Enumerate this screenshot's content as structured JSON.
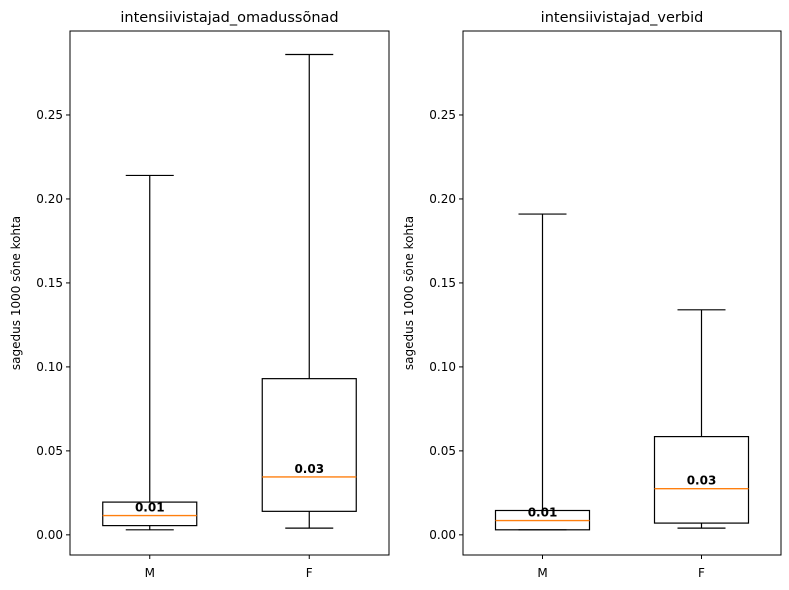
{
  "chart_data": [
    {
      "type": "box",
      "title": "intensiivistajad_omadussõnad",
      "ylabel": "sagedus 1000 sõne kohta",
      "ylim": [
        -0.012,
        0.3
      ],
      "yticks": [
        0.0,
        0.05,
        0.1,
        0.15,
        0.2,
        0.25
      ],
      "ytick_labels": [
        "0.00",
        "0.05",
        "0.10",
        "0.15",
        "0.20",
        "0.25"
      ],
      "categories": [
        "M",
        "F"
      ],
      "boxes": [
        {
          "category": "M",
          "whislo": 0.003,
          "q1": 0.0055,
          "med": 0.0115,
          "q3": 0.0195,
          "whishi": 0.214,
          "label": "0.01"
        },
        {
          "category": "F",
          "whislo": 0.004,
          "q1": 0.014,
          "med": 0.0345,
          "q3": 0.093,
          "whishi": 0.286,
          "label": "0.03"
        }
      ]
    },
    {
      "type": "box",
      "title": "intensiivistajad_verbid",
      "ylabel": "sagedus 1000 sõne kohta",
      "ylim": [
        -0.012,
        0.3
      ],
      "yticks": [
        0.0,
        0.05,
        0.1,
        0.15,
        0.2,
        0.25
      ],
      "ytick_labels": [
        "0.00",
        "0.05",
        "0.10",
        "0.15",
        "0.20",
        "0.25"
      ],
      "categories": [
        "M",
        "F"
      ],
      "boxes": [
        {
          "category": "M",
          "whislo": 0.003,
          "q1": 0.003,
          "med": 0.0085,
          "q3": 0.0145,
          "whishi": 0.191,
          "label": "0.01"
        },
        {
          "category": "F",
          "whislo": 0.004,
          "q1": 0.007,
          "med": 0.0275,
          "q3": 0.0585,
          "whishi": 0.134,
          "label": "0.03"
        }
      ]
    }
  ],
  "colors": {
    "median": "#ff7f0e",
    "box": "#000000"
  }
}
